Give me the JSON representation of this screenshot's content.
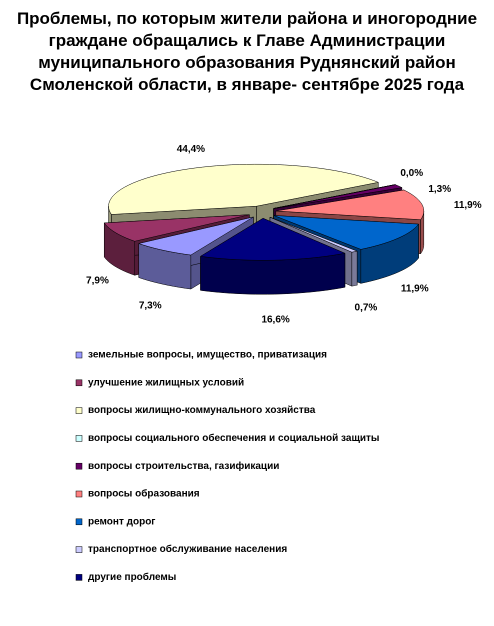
{
  "chart_data": {
    "type": "pie3d",
    "title": "Проблемы, по которым жители района и иногородние граждане обращались к Главе Администрации муниципального образования Руднянский район Смоленской области,  в январе- сентябре 2025 года",
    "categories": [
      "земельные вопросы, имущество, приватизация",
      "улучшение жилищных условий",
      "вопросы жилищно-коммунального хозяйства",
      "вопросы социального обеспечения и социальной защиты",
      "вопросы строительства,  газификации",
      "вопросы образования",
      "ремонт дорог",
      "транспортное обслуживание населения",
      "другие проблемы"
    ],
    "values": [
      7.3,
      7.9,
      44.4,
      0.0,
      1.3,
      11.9,
      11.9,
      0.7,
      16.6
    ],
    "value_labels": [
      "7,3%",
      "7,9%",
      "44,4%",
      "0,0%",
      "1,3%",
      "11,9%",
      "11,9%",
      "0,7%",
      "16,6%"
    ],
    "colors": [
      "#9999ff",
      "#993366",
      "#ffffcc",
      "#ccffff",
      "#660066",
      "#ff8080",
      "#0066cc",
      "#ccccff",
      "#000080"
    ],
    "legend": "bottom"
  }
}
